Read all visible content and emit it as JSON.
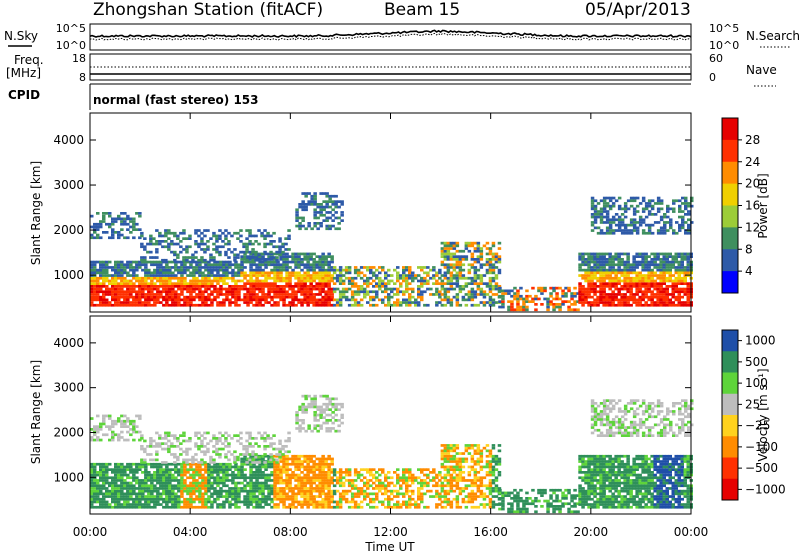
{
  "header": {
    "station": "Zhongshan Station (fitACF)",
    "beam": "Beam 15",
    "date": "05/Apr/2013"
  },
  "noise_panel": {
    "left_label": "N.Sky",
    "left_ticks": [
      "10^5",
      "10^0"
    ],
    "right_label": "N.Search",
    "right_ticks": [
      "10^5",
      "10^0"
    ]
  },
  "freq_panel": {
    "left_label_1": "Freq.",
    "left_label_2": "[MHz]",
    "left_ticks": [
      "18",
      "8"
    ],
    "right_label": "Nave",
    "right_ticks": [
      "60",
      "0"
    ]
  },
  "cpid_panel": {
    "label": "CPID",
    "mode_text": "normal (fast stereo) 153"
  },
  "x_axis": {
    "label": "Time UT",
    "ticks": [
      "00:00",
      "04:00",
      "08:00",
      "12:00",
      "16:00",
      "20:00",
      "00:00"
    ]
  },
  "colors": {
    "power_scale": [
      "#0000ff",
      "#2e5aa8",
      "#3f8f5f",
      "#9ccd38",
      "#f0d000",
      "#ff8c00",
      "#ff3000",
      "#e60000"
    ],
    "velocity_scale": [
      "#e60000",
      "#ff3000",
      "#ff8c00",
      "#ffd21e",
      "#bdbdbd",
      "#5ed43a",
      "#2f8f5a",
      "#1f4fa8"
    ]
  },
  "chart_data": [
    {
      "type": "heatmap",
      "title": "Power",
      "ylabel": "Slant Range [km]",
      "ylim": [
        180,
        4600
      ],
      "yticks": [
        1000,
        2000,
        3000,
        4000
      ],
      "colorbar": {
        "label": "Power [dB]",
        "range": [
          0,
          32
        ],
        "ticks": [
          4,
          8,
          12,
          16,
          20,
          24,
          28
        ]
      }
    },
    {
      "type": "heatmap",
      "title": "Velocity",
      "ylabel": "Slant Range [km]",
      "ylim": [
        180,
        4600
      ],
      "yticks": [
        1000,
        2000,
        3000,
        4000
      ],
      "colorbar": {
        "label": "Velocity [m s⁻¹]",
        "ticks": [
          "1000",
          "500",
          "100",
          "25",
          "−25",
          "−100",
          "−500",
          "−1000"
        ]
      }
    }
  ]
}
